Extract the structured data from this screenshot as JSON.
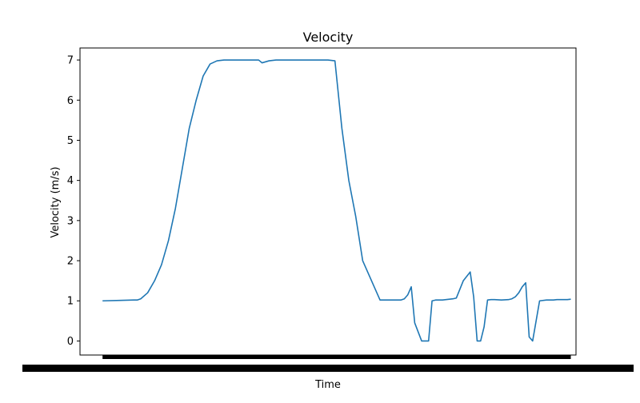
{
  "chart_data": {
    "type": "line",
    "title": "Velocity",
    "xlabel": "Time",
    "ylabel": "Velocity (m/s)",
    "x_tick_labels": "illegible (dense overlapping timestamps)",
    "y_ticks": [
      0,
      1,
      2,
      3,
      4,
      5,
      6,
      7
    ],
    "ylim": [
      -0.35,
      7.3
    ],
    "xlim": [
      -6.5,
      136.5
    ],
    "grid": false,
    "legend": "none",
    "series": [
      {
        "color": "#1f77b4",
        "x": [
          0,
          5,
          9,
          10,
          11,
          13,
          15,
          17,
          19,
          21,
          23,
          24,
          25,
          27,
          29,
          31,
          33,
          35,
          37,
          39,
          41,
          43,
          45,
          46,
          48,
          50,
          55,
          60,
          65,
          67,
          69,
          71,
          73,
          75,
          80,
          85,
          86,
          87,
          88,
          89,
          90,
          92,
          94,
          95,
          96,
          97,
          98,
          99,
          100,
          101,
          102,
          104,
          106,
          107,
          108,
          109,
          110,
          111,
          112,
          113,
          115,
          117,
          118,
          119,
          120,
          121,
          122,
          123,
          124,
          126,
          128,
          129,
          130,
          131,
          132,
          133,
          134,
          135
        ],
        "values": [
          1.0,
          1.01,
          1.02,
          1.02,
          1.05,
          1.2,
          1.5,
          1.9,
          2.5,
          3.3,
          4.3,
          4.8,
          5.3,
          6.0,
          6.6,
          6.9,
          6.98,
          7.0,
          7.0,
          7.0,
          7.0,
          7.0,
          7.0,
          6.93,
          6.98,
          7.0,
          7.0,
          7.0,
          7.0,
          6.98,
          5.3,
          4.0,
          3.1,
          2.0,
          1.02,
          1.02,
          1.02,
          1.05,
          1.15,
          1.35,
          0.45,
          0.0,
          0.0,
          1.0,
          1.02,
          1.02,
          1.02,
          1.03,
          1.04,
          1.05,
          1.07,
          1.5,
          1.72,
          1.1,
          0.0,
          0.0,
          0.35,
          1.02,
          1.03,
          1.03,
          1.02,
          1.03,
          1.05,
          1.1,
          1.2,
          1.35,
          1.45,
          0.1,
          0.0,
          1.0,
          1.02,
          1.02,
          1.02,
          1.03,
          1.03,
          1.03,
          1.03,
          1.04
        ]
      }
    ]
  }
}
